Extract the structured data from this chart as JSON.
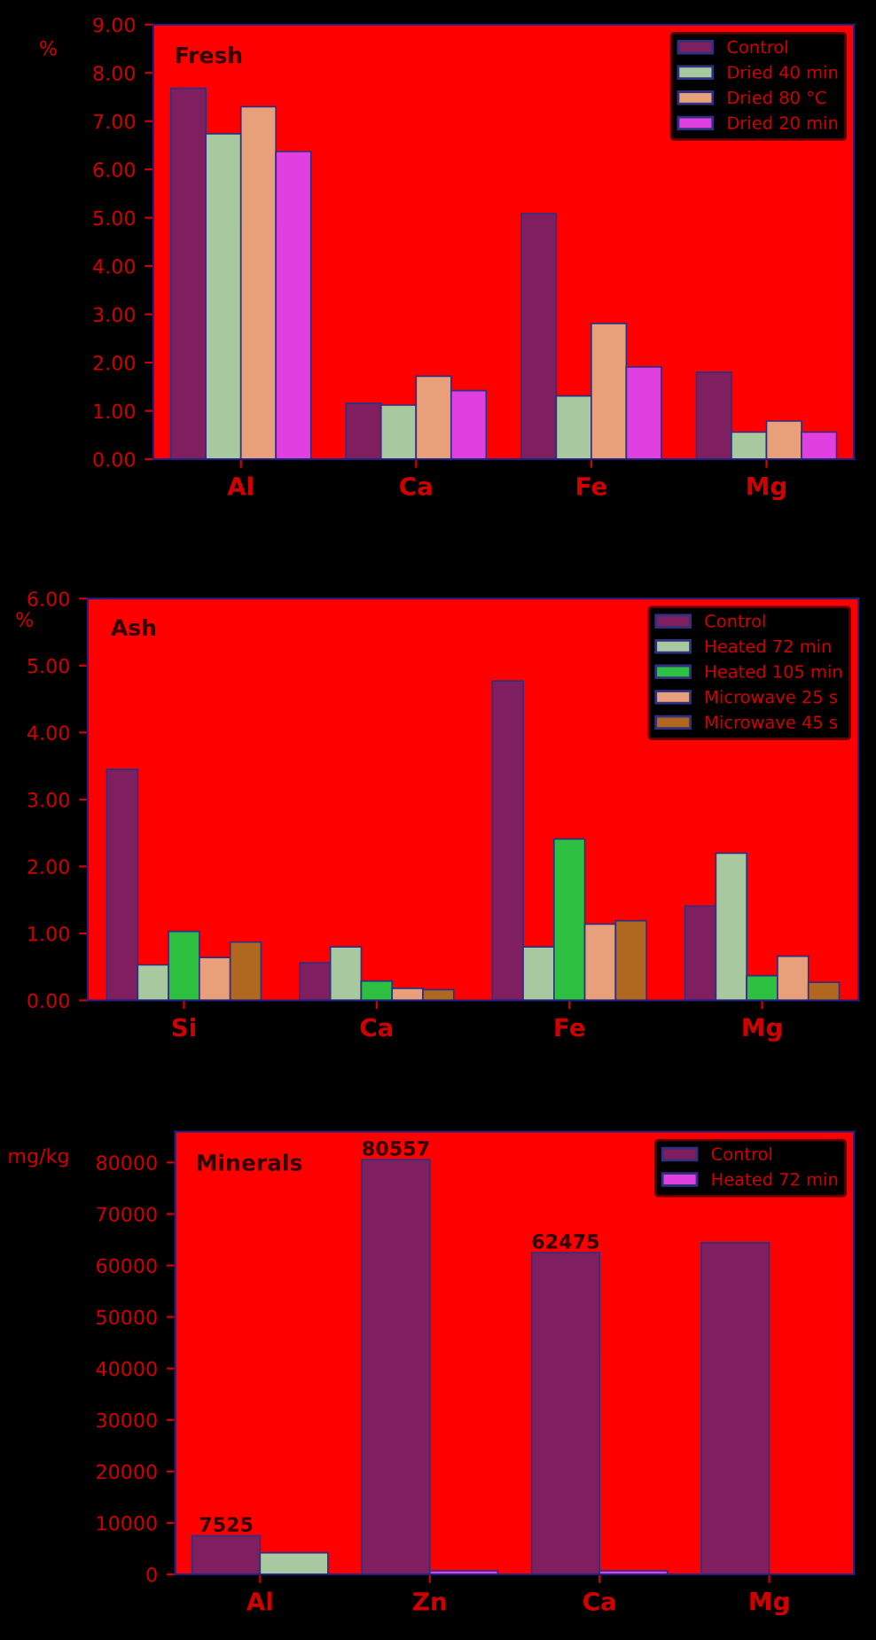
{
  "chart_data": [
    {
      "type": "bar",
      "title": "Fresh",
      "ylabel": "%",
      "categories": [
        "Al",
        "Ca",
        "Fe",
        "Mg"
      ],
      "ylim": [
        0,
        9
      ],
      "yticks": [
        {
          "value": 0,
          "label": "0.00"
        },
        {
          "value": 1,
          "label": "1.00"
        },
        {
          "value": 2,
          "label": "2.00"
        },
        {
          "value": 3,
          "label": "3.00"
        },
        {
          "value": 4,
          "label": "4.00"
        },
        {
          "value": 5,
          "label": "5.00"
        },
        {
          "value": 6,
          "label": "6.00"
        },
        {
          "value": 7,
          "label": "7.00"
        },
        {
          "value": 8,
          "label": "8.00"
        },
        {
          "value": 9,
          "label": "9.00"
        }
      ],
      "legend": "top right",
      "grid": false,
      "series": [
        {
          "name": "Control",
          "color": "#7f1f5f",
          "values": [
            7.68,
            1.16,
            5.09,
            1.8
          ]
        },
        {
          "name": "Dried 40 min",
          "color": "#a8c8a0",
          "values": [
            6.74,
            1.12,
            1.31,
            0.56
          ]
        },
        {
          "name": "Dried 80 °C",
          "color": "#e8a07a",
          "values": [
            7.3,
            1.72,
            2.81,
            0.79
          ]
        },
        {
          "name": "Dried 20 min",
          "color": "#e040e0",
          "values": [
            6.37,
            1.42,
            1.91,
            0.56
          ]
        }
      ]
    },
    {
      "type": "bar",
      "title": "Ash",
      "ylabel": "%",
      "categories": [
        "Si",
        "Ca",
        "Fe",
        "Mg"
      ],
      "ylim": [
        0,
        6
      ],
      "yticks": [
        {
          "value": 0,
          "label": "0.00"
        },
        {
          "value": 1,
          "label": "1.00"
        },
        {
          "value": 2,
          "label": "2.00"
        },
        {
          "value": 3,
          "label": "3.00"
        },
        {
          "value": 4,
          "label": "4.00"
        },
        {
          "value": 5,
          "label": "5.00"
        },
        {
          "value": 6,
          "label": "6.00"
        }
      ],
      "legend": "top right",
      "grid": false,
      "series": [
        {
          "name": "Control",
          "color": "#7f1f5f",
          "values": [
            3.45,
            0.56,
            4.77,
            1.41
          ]
        },
        {
          "name": "Heated 72 min",
          "color": "#a8c8a0",
          "values": [
            0.53,
            0.8,
            0.8,
            2.2
          ]
        },
        {
          "name": "Heated 105 min",
          "color": "#2ec040",
          "values": [
            1.03,
            0.29,
            2.41,
            0.37
          ]
        },
        {
          "name": "Microwave 25 s",
          "color": "#e8a07a",
          "values": [
            0.64,
            0.18,
            1.14,
            0.66
          ]
        },
        {
          "name": "Microwave 45 s",
          "color": "#b06820",
          "values": [
            0.87,
            0.16,
            1.19,
            0.27
          ]
        }
      ]
    },
    {
      "type": "bar",
      "title": "Minerals",
      "ylabel": "mg/kg",
      "categories": [
        "Al",
        "Zn",
        "Ca",
        "Mg"
      ],
      "ylim": [
        0,
        86000
      ],
      "yticks": [
        0,
        10000,
        20000,
        30000,
        40000,
        50000,
        60000,
        70000,
        80000
      ],
      "legend": "top right",
      "grid": false,
      "series": [
        {
          "name": "Control",
          "color": "#7f1f5f",
          "values": [
            7525,
            80557,
            62475,
            64400
          ],
          "value_labels": [
            "7525",
            "80557",
            "62475",
            null
          ]
        },
        {
          "name": "Heated 72 min",
          "color": "#e040e0",
          "colors": [
            "#a8c8a0",
            "#e040e0",
            "#e040e0",
            "#e040e0"
          ],
          "values": [
            4200,
            700,
            700,
            null
          ]
        }
      ]
    }
  ]
}
